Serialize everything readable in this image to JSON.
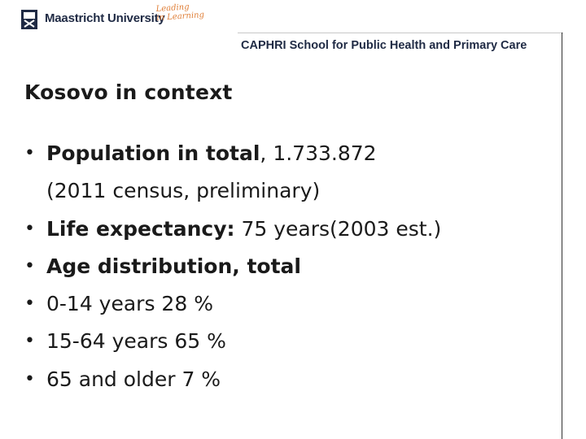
{
  "header": {
    "university": "Maastricht University",
    "tagline_line1": "Leading",
    "tagline_line2": "in Learning",
    "school": "CAPHRI School for Public Health and Primary Care"
  },
  "slide": {
    "title": "Kosovo in context",
    "bullets": [
      {
        "bold": "Population in total",
        "text": ", 1.733.872"
      },
      {
        "continuation": "(2011 census, preliminary)"
      },
      {
        "bold": "Life expectancy:",
        "text": " 75 years(2003 est.)"
      },
      {
        "bold": "Age distribution, total",
        "text": ""
      },
      {
        "text": "0-14 years 28 %"
      },
      {
        "text": "15-64 years 65 %"
      },
      {
        "text": "65 and older 7 %"
      }
    ],
    "bullet_symbol": "•"
  },
  "colors": {
    "brand": "#1f2a44",
    "tagline": "#e0803a"
  }
}
